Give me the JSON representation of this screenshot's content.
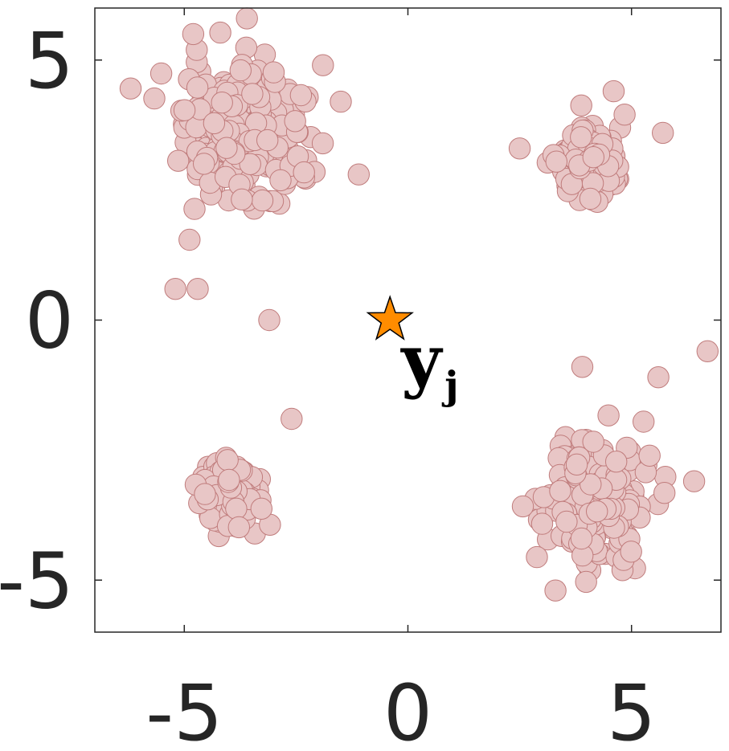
{
  "chart_data": {
    "type": "scatter",
    "title": "",
    "xlabel": "",
    "ylabel": "",
    "xlim": [
      -7,
      7
    ],
    "ylim": [
      -6,
      6
    ],
    "xticks": [
      -5,
      0,
      5
    ],
    "yticks": [
      -5,
      0,
      5
    ],
    "xtick_labels": [
      "-5",
      "0",
      "5"
    ],
    "ytick_labels": [
      "-5",
      "0",
      "5"
    ],
    "grid": false,
    "colors": {
      "point_fill": "#e8c6c6",
      "point_edge": "#c07c7c",
      "star_fill": "#ff8c00",
      "star_edge": "#000000",
      "axis": "#262626"
    },
    "clusters": [
      {
        "center": [
          -3.6,
          3.5
        ],
        "spread": 1.05,
        "count": 300
      },
      {
        "center": [
          4.0,
          3.0
        ],
        "spread": 0.55,
        "count": 130
      },
      {
        "center": [
          -4.0,
          -3.3
        ],
        "spread": 0.55,
        "count": 130
      },
      {
        "center": [
          4.1,
          -3.5
        ],
        "spread": 0.85,
        "count": 250
      }
    ],
    "outliers": [
      {
        "x": -3.6,
        "y": 5.8
      },
      {
        "x": -4.8,
        "y": 5.5
      },
      {
        "x": -1.9,
        "y": 4.9
      },
      {
        "x": -1.5,
        "y": 4.2
      },
      {
        "x": -1.1,
        "y": 2.8
      },
      {
        "x": -5.2,
        "y": 0.6
      },
      {
        "x": -4.7,
        "y": 0.6
      },
      {
        "x": -3.1,
        "y": 0.0
      },
      {
        "x": -2.6,
        "y": -1.9
      },
      {
        "x": 4.6,
        "y": 4.4
      },
      {
        "x": 2.5,
        "y": 3.3
      },
      {
        "x": 5.7,
        "y": 3.6
      },
      {
        "x": 3.9,
        "y": -0.9
      },
      {
        "x": 5.6,
        "y": -1.1
      },
      {
        "x": 6.7,
        "y": -0.6
      },
      {
        "x": 6.4,
        "y": -3.1
      },
      {
        "x": 3.3,
        "y": -5.2
      }
    ],
    "marker_radius_units": 0.33,
    "annotation": {
      "point": [
        -0.4,
        0.0
      ],
      "label_main": "y",
      "label_sub": "j",
      "marker": "star"
    }
  }
}
